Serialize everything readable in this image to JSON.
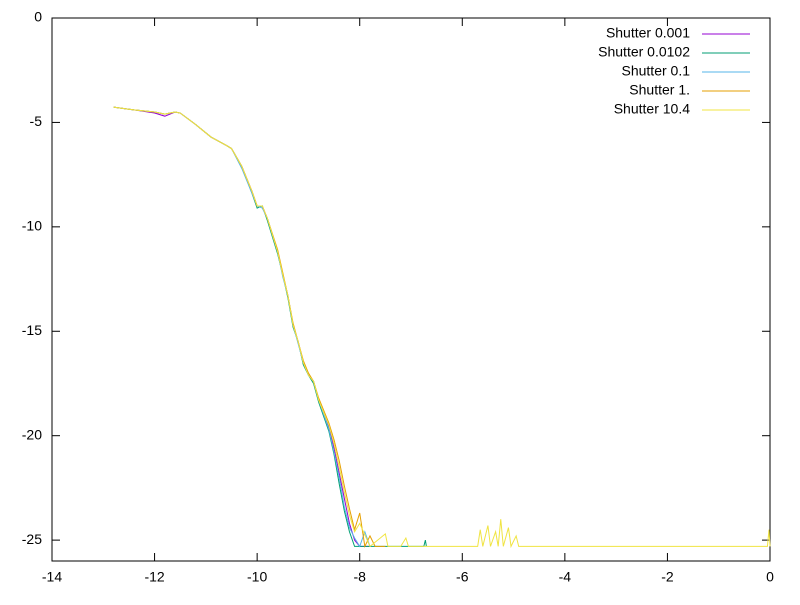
{
  "chart_data": {
    "type": "line",
    "xlim": [
      -14,
      0
    ],
    "ylim": [
      -26,
      0
    ],
    "xticks": [
      -14,
      -12,
      -10,
      -8,
      -6,
      -4,
      -2,
      0
    ],
    "yticks": [
      0,
      -5,
      -10,
      -15,
      -20,
      -25
    ],
    "legend": "top-right",
    "grid": false,
    "series": [
      {
        "name": "Shutter 0.001",
        "color": "#9400d3",
        "x": [
          -12.8,
          -12.4,
          -12.0,
          -11.8,
          -11.6,
          -11.5,
          -11.2,
          -10.9,
          -10.6,
          -10.5,
          -10.3,
          -10.1,
          -10.0,
          -9.9,
          -9.8,
          -9.6,
          -9.5,
          -9.4,
          -9.3,
          -9.2,
          -9.1,
          -9.0,
          -8.9,
          -8.8,
          -8.6,
          -8.5,
          -8.4,
          -8.3,
          -8.2,
          -8.1,
          -8.0,
          -7.8
        ],
        "values": [
          -4.27,
          -4.4,
          -4.55,
          -4.7,
          -4.5,
          -4.55,
          -5.1,
          -5.7,
          -6.1,
          -6.25,
          -7.1,
          -8.3,
          -9.0,
          -9.0,
          -9.6,
          -11.2,
          -12.3,
          -13.3,
          -14.7,
          -15.5,
          -16.5,
          -17.1,
          -17.4,
          -18.3,
          -19.6,
          -20.6,
          -21.8,
          -23.0,
          -24.2,
          -25.0,
          -25.3,
          -25.3
        ]
      },
      {
        "name": "Shutter 0.0102",
        "color": "#009e73",
        "x": [
          -12.8,
          -12.4,
          -12.0,
          -11.8,
          -11.6,
          -11.5,
          -11.2,
          -10.9,
          -10.6,
          -10.5,
          -10.3,
          -10.1,
          -10.0,
          -9.9,
          -9.8,
          -9.6,
          -9.5,
          -9.4,
          -9.3,
          -9.2,
          -9.1,
          -9.0,
          -8.9,
          -8.8,
          -8.6,
          -8.5,
          -8.4,
          -8.3,
          -8.2,
          -8.1,
          -8.0,
          -7.8,
          -7.5,
          -7.3,
          -6.75,
          -6.72,
          -6.7
        ],
        "values": [
          -4.27,
          -4.4,
          -4.5,
          -4.6,
          -4.5,
          -4.55,
          -5.1,
          -5.7,
          -6.1,
          -6.25,
          -7.1,
          -8.4,
          -9.1,
          -9.0,
          -9.7,
          -11.3,
          -12.3,
          -13.4,
          -14.8,
          -15.5,
          -16.6,
          -17.1,
          -17.5,
          -18.4,
          -19.8,
          -20.9,
          -22.3,
          -23.6,
          -24.6,
          -25.3,
          -25.3,
          -25.3,
          -25.3,
          -25.3,
          -25.3,
          -25.0,
          -25.3
        ]
      },
      {
        "name": "Shutter 0.1",
        "color": "#56b4e9",
        "x": [
          -12.8,
          -12.4,
          -12.0,
          -11.8,
          -11.6,
          -11.5,
          -11.2,
          -10.9,
          -10.6,
          -10.5,
          -10.3,
          -10.1,
          -10.0,
          -9.9,
          -9.8,
          -9.6,
          -9.5,
          -9.4,
          -9.3,
          -9.2,
          -9.1,
          -9.0,
          -8.9,
          -8.8,
          -8.6,
          -8.5,
          -8.4,
          -8.3,
          -8.2,
          -8.1,
          -8.0,
          -7.9,
          -7.8
        ],
        "values": [
          -4.27,
          -4.4,
          -4.5,
          -4.6,
          -4.5,
          -4.55,
          -5.1,
          -5.7,
          -6.1,
          -6.25,
          -7.2,
          -8.4,
          -9.0,
          -9.1,
          -9.6,
          -11.2,
          -12.4,
          -13.3,
          -14.7,
          -15.6,
          -16.5,
          -17.1,
          -17.4,
          -18.3,
          -19.7,
          -20.8,
          -22.0,
          -23.4,
          -24.4,
          -24.9,
          -25.3,
          -24.6,
          -25.3
        ]
      },
      {
        "name": "Shutter 1.",
        "color": "#e69f00",
        "x": [
          -12.8,
          -12.4,
          -12.0,
          -11.8,
          -11.6,
          -11.5,
          -11.2,
          -10.9,
          -10.6,
          -10.5,
          -10.3,
          -10.1,
          -10.0,
          -9.9,
          -9.8,
          -9.6,
          -9.5,
          -9.4,
          -9.3,
          -9.2,
          -9.1,
          -9.0,
          -8.9,
          -8.8,
          -8.6,
          -8.5,
          -8.4,
          -8.3,
          -8.2,
          -8.1,
          -8.0,
          -7.9,
          -7.8,
          -7.7,
          -7.6,
          -7.5
        ],
        "values": [
          -4.27,
          -4.4,
          -4.5,
          -4.6,
          -4.5,
          -4.55,
          -5.1,
          -5.7,
          -6.1,
          -6.25,
          -7.1,
          -8.3,
          -9.0,
          -9.0,
          -9.6,
          -11.1,
          -12.2,
          -13.3,
          -14.6,
          -15.5,
          -16.4,
          -17.0,
          -17.4,
          -18.2,
          -19.4,
          -20.2,
          -21.2,
          -22.4,
          -23.5,
          -24.5,
          -23.7,
          -25.3,
          -24.8,
          -25.3,
          -25.3,
          -25.3
        ]
      },
      {
        "name": "Shutter 10.4",
        "color": "#f0e442",
        "x": [
          -12.8,
          -12.4,
          -12.0,
          -11.8,
          -11.6,
          -11.5,
          -11.2,
          -10.9,
          -10.6,
          -10.5,
          -10.3,
          -10.1,
          -10.0,
          -9.9,
          -9.8,
          -9.6,
          -9.5,
          -9.4,
          -9.3,
          -9.2,
          -9.1,
          -9.0,
          -8.9,
          -8.8,
          -8.6,
          -8.5,
          -8.4,
          -8.3,
          -8.2,
          -8.1,
          -8.0,
          -7.8,
          -7.5,
          -7.45,
          -7.2,
          -7.1,
          -7.05,
          -5.7,
          -5.65,
          -5.6,
          -5.5,
          -5.45,
          -5.35,
          -5.3,
          -5.25,
          -5.2,
          -5.1,
          -5.05,
          -4.95,
          -4.9,
          -0.05,
          -0.02,
          0
        ],
        "values": [
          -4.27,
          -4.4,
          -4.5,
          -4.6,
          -4.5,
          -4.55,
          -5.1,
          -5.7,
          -6.1,
          -6.25,
          -7.1,
          -8.3,
          -9.0,
          -9.0,
          -9.6,
          -11.2,
          -12.3,
          -13.3,
          -14.7,
          -15.5,
          -16.5,
          -17.1,
          -17.4,
          -18.3,
          -19.5,
          -20.4,
          -21.5,
          -22.7,
          -23.8,
          -24.6,
          -24.2,
          -25.3,
          -24.7,
          -25.3,
          -25.3,
          -24.9,
          -25.3,
          -25.3,
          -24.5,
          -25.3,
          -24.3,
          -25.3,
          -24.6,
          -25.3,
          -24.0,
          -25.3,
          -24.4,
          -25.3,
          -24.8,
          -25.3,
          -25.3,
          -24.5,
          -25.3
        ]
      }
    ]
  }
}
